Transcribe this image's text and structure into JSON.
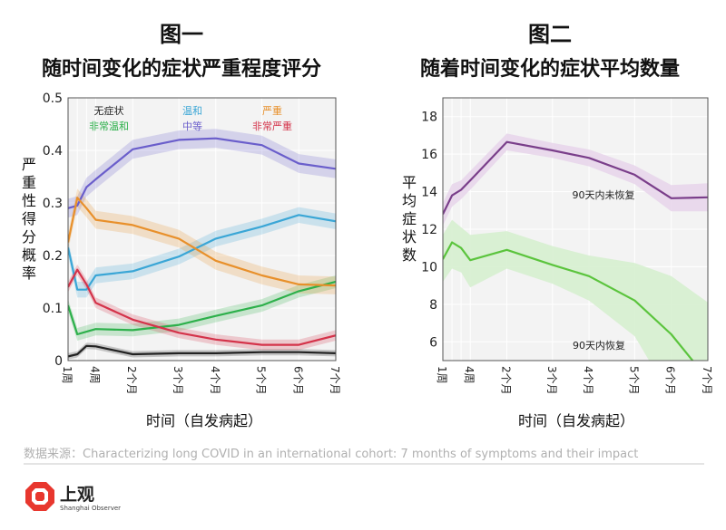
{
  "chart_data": [
    {
      "type": "line",
      "figure_label": "图一",
      "title": "随时间变化的症状严重程度评分",
      "xlabel": "时间（自发病起）",
      "ylabel": "严重性得分概率",
      "x": [
        1,
        2,
        3,
        4,
        8,
        13,
        17,
        22,
        26,
        30
      ],
      "x_ticks": [
        {
          "x": 1,
          "label": "1周"
        },
        {
          "x": 4,
          "label": "4周"
        },
        {
          "x": 8,
          "label": "2个月"
        },
        {
          "x": 13,
          "label": "3个月"
        },
        {
          "x": 17,
          "label": "4个月"
        },
        {
          "x": 22,
          "label": "5个月"
        },
        {
          "x": 26,
          "label": "6个月"
        },
        {
          "x": 30,
          "label": "7个月"
        }
      ],
      "ylim": [
        0,
        0.5
      ],
      "y_ticks": [
        "0",
        "0.1",
        "0.2",
        "0.3",
        "0.4",
        "0.5"
      ],
      "grid": true,
      "legend_position": "top",
      "series": [
        {
          "name": "无症状",
          "color": "#222222",
          "band": 0.006,
          "values": [
            0.008,
            0.012,
            0.028,
            0.027,
            0.012,
            0.014,
            0.014,
            0.016,
            0.016,
            0.014
          ]
        },
        {
          "name": "非常温和",
          "color": "#2db04b",
          "band": 0.012,
          "values": [
            0.105,
            0.05,
            0.055,
            0.06,
            0.058,
            0.068,
            0.085,
            0.105,
            0.132,
            0.15
          ]
        },
        {
          "name": "温和",
          "color": "#3aa6d6",
          "band": 0.015,
          "values": [
            0.215,
            0.135,
            0.135,
            0.162,
            0.17,
            0.198,
            0.232,
            0.255,
            0.277,
            0.265
          ]
        },
        {
          "name": "中等",
          "color": "#6a5ecb",
          "band": 0.018,
          "values": [
            0.29,
            0.295,
            0.33,
            0.345,
            0.402,
            0.42,
            0.423,
            0.41,
            0.375,
            0.365
          ]
        },
        {
          "name": "严重",
          "color": "#e8902b",
          "band": 0.017,
          "values": [
            0.225,
            0.31,
            0.29,
            0.268,
            0.258,
            0.232,
            0.19,
            0.162,
            0.145,
            0.143
          ]
        },
        {
          "name": "非常严重",
          "color": "#d4334a",
          "band": 0.01,
          "values": [
            0.14,
            0.173,
            0.145,
            0.11,
            0.078,
            0.053,
            0.04,
            0.03,
            0.03,
            0.048
          ]
        }
      ]
    },
    {
      "type": "line",
      "figure_label": "图二",
      "title": "随着时间变化的症状平均数量",
      "xlabel": "时间（自发病起）",
      "ylabel": "平均症状数",
      "x": [
        1,
        2,
        3,
        4,
        8,
        13,
        17,
        22,
        26,
        30
      ],
      "x_ticks": [
        {
          "x": 1,
          "label": "1周"
        },
        {
          "x": 4,
          "label": "4周"
        },
        {
          "x": 8,
          "label": "2个月"
        },
        {
          "x": 13,
          "label": "3个月"
        },
        {
          "x": 17,
          "label": "4个月"
        },
        {
          "x": 22,
          "label": "5个月"
        },
        {
          "x": 26,
          "label": "6个月"
        },
        {
          "x": 30,
          "label": "7个月"
        }
      ],
      "ylim": [
        5,
        19
      ],
      "y_ticks": [
        "6",
        "8",
        "10",
        "12",
        "14",
        "16",
        "18"
      ],
      "grid": true,
      "series": [
        {
          "name": "90天内未恢复",
          "color": "#7a3e8a",
          "fill": "#e6d3ea",
          "values": [
            12.8,
            13.8,
            14.1,
            14.6,
            16.65,
            16.2,
            15.8,
            14.9,
            13.65,
            13.7
          ],
          "lower": [
            12.2,
            13.2,
            13.6,
            14.1,
            16.2,
            15.8,
            15.35,
            14.4,
            12.95,
            12.95
          ],
          "upper": [
            13.4,
            14.4,
            14.6,
            15.1,
            17.1,
            16.6,
            16.25,
            15.4,
            14.35,
            14.45
          ]
        },
        {
          "name": "90天内恢复",
          "color": "#5bc43d",
          "fill": "#d3efcd",
          "values": [
            10.4,
            11.3,
            11.0,
            10.35,
            10.9,
            10.1,
            9.5,
            8.2,
            6.4,
            4.0
          ],
          "lower": [
            9.2,
            9.9,
            9.7,
            8.9,
            9.9,
            9.1,
            8.2,
            6.3,
            3.0,
            0.0
          ],
          "upper": [
            11.7,
            12.5,
            12.1,
            11.7,
            11.9,
            11.1,
            10.6,
            10.2,
            9.5,
            8.1
          ]
        }
      ]
    }
  ],
  "source": "数据来源：Characterizing long COVID in an international cohort: 7 months of symptoms and their impact",
  "brand": {
    "name_cn": "上观",
    "name_en": "Shanghai Observer",
    "color": "#e8372e"
  }
}
